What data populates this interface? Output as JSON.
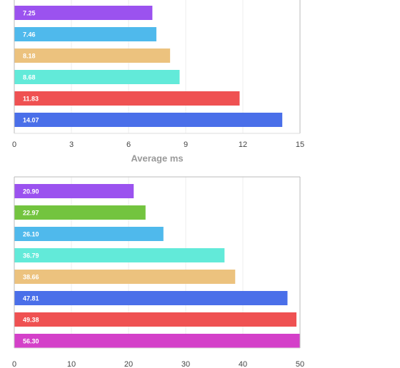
{
  "chart_data": [
    {
      "type": "bar",
      "orientation": "horizontal",
      "values": [
        7.25,
        7.46,
        8.18,
        8.68,
        11.83,
        14.07
      ],
      "value_labels": [
        "7.25",
        "7.46",
        "8.18",
        "8.68",
        "11.83",
        "14.07"
      ],
      "colors": [
        "#9b52ef",
        "#4fb9ec",
        "#ecc27e",
        "#62ead9",
        "#ef5152",
        "#4a6fe9"
      ],
      "xlim": [
        0,
        15
      ],
      "xticks": [
        0,
        3,
        6,
        9,
        12,
        15
      ],
      "x_label": "Average ms",
      "grid": true
    },
    {
      "type": "bar",
      "orientation": "horizontal",
      "values": [
        20.9,
        22.97,
        26.1,
        36.79,
        38.66,
        47.81,
        49.38,
        56.3
      ],
      "value_labels": [
        "20.90",
        "22.97",
        "26.10",
        "36.79",
        "38.66",
        "47.81",
        "49.38",
        "56.30"
      ],
      "colors": [
        "#9b52ef",
        "#73c43f",
        "#4fb9ec",
        "#62ead9",
        "#ecc27e",
        "#4a6fe9",
        "#ef5152",
        "#d440c9"
      ],
      "xlim": [
        0,
        50
      ],
      "xticks": [
        0,
        10,
        20,
        30,
        40,
        50
      ],
      "grid": true
    }
  ]
}
